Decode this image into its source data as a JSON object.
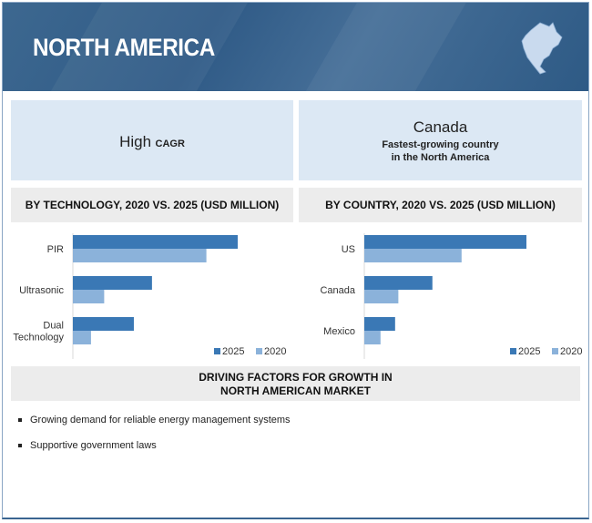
{
  "header": {
    "title": "NORTH AMERICA",
    "icon": "north-america-map-icon"
  },
  "left_panel": {
    "main": "High",
    "small": "CAGR"
  },
  "right_panel": {
    "main": "Canada",
    "line1": "Fastest-growing country",
    "line2": "in the North America"
  },
  "colors": {
    "header": "#356089",
    "series_2025": "#3a78b5",
    "series_2020": "#8bb2da",
    "panel": "#dce8f4",
    "band": "#ececec"
  },
  "chart_data": [
    {
      "type": "bar",
      "orientation": "horizontal",
      "title": "BY TECHNOLOGY, 2020 VS. 2025 (USD MILLION)",
      "categories": [
        "PIR",
        "Ultrasonic",
        "Dual Technology"
      ],
      "category_lines": [
        [
          "PIR"
        ],
        [
          "Ultrasonic"
        ],
        [
          "Dual",
          "Technology"
        ]
      ],
      "series": [
        {
          "name": "2025",
          "values": [
            100,
            48,
            37
          ]
        },
        {
          "name": "2020",
          "values": [
            81,
            19,
            11
          ]
        }
      ],
      "value_note": "relative bar lengths, no value axis shown",
      "legend": "bottom-right",
      "grid": false
    },
    {
      "type": "bar",
      "orientation": "horizontal",
      "title": "BY COUNTRY, 2020 VS. 2025 (USD MILLION)",
      "categories": [
        "US",
        "Canada",
        "Mexico"
      ],
      "category_lines": [
        [
          "US"
        ],
        [
          "Canada"
        ],
        [
          "Mexico"
        ]
      ],
      "series": [
        {
          "name": "2025",
          "values": [
            100,
            42,
            19
          ]
        },
        {
          "name": "2020",
          "values": [
            60,
            21,
            10
          ]
        }
      ],
      "legend": "bottom-right",
      "grid": false
    }
  ],
  "driving": {
    "line1": "DRIVING FACTORS FOR GROWTH IN",
    "line2": "NORTH AMERICAN MARKET",
    "items": [
      "Growing demand for reliable energy management systems",
      "Supportive government laws"
    ]
  }
}
